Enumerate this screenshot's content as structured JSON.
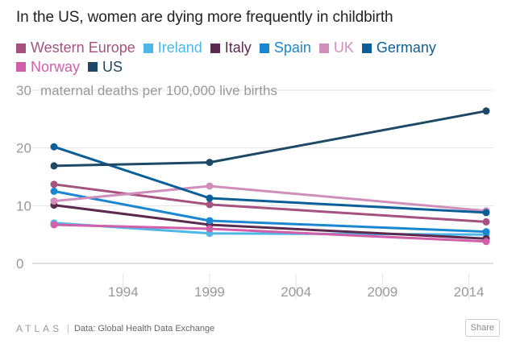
{
  "chart_data": {
    "type": "line",
    "title": "In the US, women are dying more frequently in childbirth",
    "ylabel": "maternal deaths per 100,000 live births",
    "ylim": [
      0,
      30
    ],
    "xlim": [
      1990,
      2015
    ],
    "yticks": [
      0,
      10,
      20,
      30
    ],
    "ytick_labels": [
      "0",
      "10",
      "20",
      "30"
    ],
    "xticks": [
      1994,
      1999,
      2004,
      2009,
      2014
    ],
    "xtick_labels": [
      "1994",
      "1999",
      "2004",
      "2009",
      "2014"
    ],
    "legend_position": "top",
    "x": [
      1990,
      1999,
      2015
    ],
    "series": [
      {
        "name": "Western Europe",
        "color": "#a6527f",
        "values": [
          13.7,
          10.2,
          7.2
        ]
      },
      {
        "name": "Ireland",
        "color": "#4fb7e6",
        "values": [
          7.0,
          5.2,
          5.0
        ]
      },
      {
        "name": "Italy",
        "color": "#5c2a4f",
        "values": [
          10.1,
          6.7,
          4.3
        ]
      },
      {
        "name": "Spain",
        "color": "#1a87d0",
        "values": [
          12.5,
          7.4,
          5.5
        ]
      },
      {
        "name": "UK",
        "color": "#d08fbb",
        "values": [
          10.8,
          13.4,
          9.1
        ]
      },
      {
        "name": "Germany",
        "color": "#0b5f99",
        "values": [
          20.2,
          11.3,
          8.8
        ]
      },
      {
        "name": "Norway",
        "color": "#d15fa9",
        "values": [
          6.7,
          6.0,
          3.8
        ]
      },
      {
        "name": "US",
        "color": "#1d4866",
        "values": [
          16.9,
          17.5,
          26.4
        ]
      }
    ]
  },
  "footer": {
    "brand": "ATLAS",
    "separator": "|",
    "source": "Data: Global Health Data Exchange",
    "share_label": "Share"
  }
}
